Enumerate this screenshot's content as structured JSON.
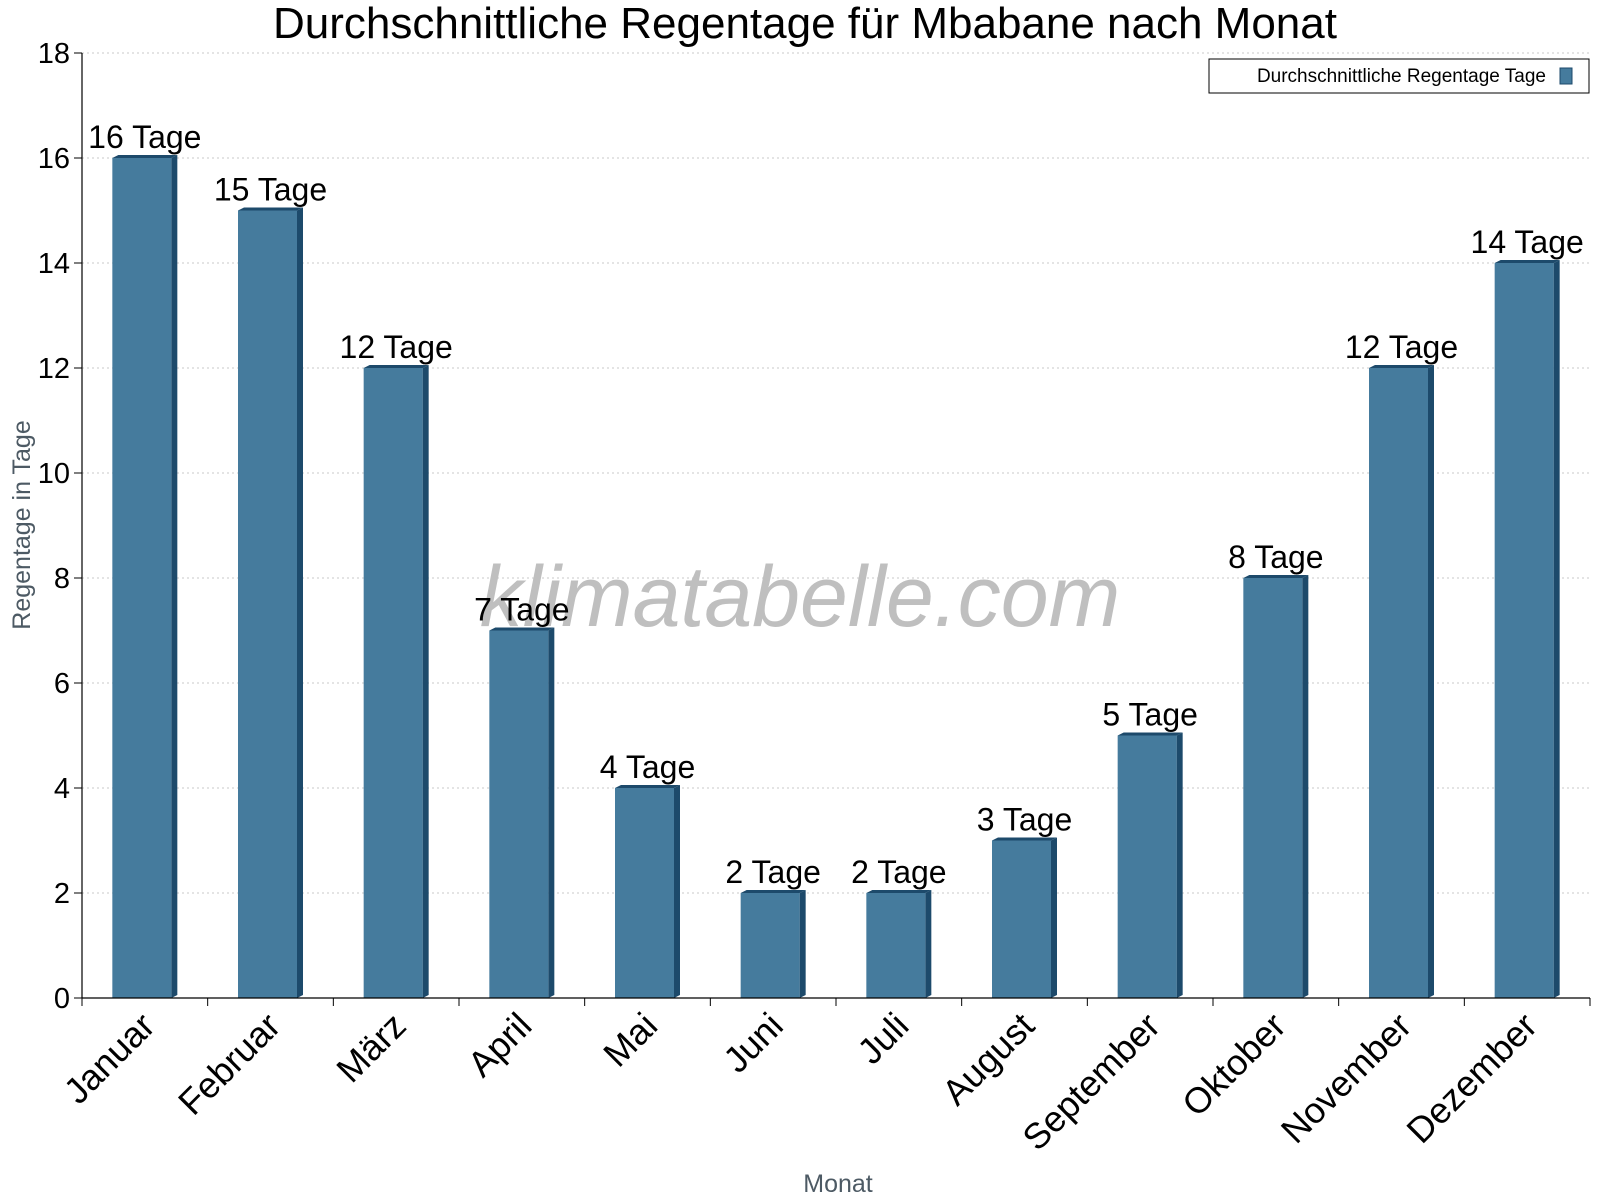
{
  "chart_data": {
    "type": "bar",
    "title": "Durchschnittliche Regentage für Mbabane nach Monat",
    "xlabel": "Monat",
    "ylabel": "Regentage in Tage",
    "ylim": [
      0,
      18
    ],
    "yticks": [
      0,
      2,
      4,
      6,
      8,
      10,
      12,
      14,
      16,
      18
    ],
    "grid": true,
    "legend_position": "top-right",
    "categories": [
      "Januar",
      "Februar",
      "März",
      "April",
      "Mai",
      "Juni",
      "Juli",
      "August",
      "September",
      "Oktober",
      "November",
      "Dezember"
    ],
    "series": [
      {
        "name": "Durchschnittliche Regentage Tage",
        "values": [
          16,
          15,
          12,
          7,
          4,
          2,
          2,
          3,
          5,
          8,
          12,
          14
        ],
        "data_labels": [
          "16 Tage",
          "15 Tage",
          "12 Tage",
          "7 Tage",
          "4 Tage",
          "2 Tage",
          "2 Tage",
          "3 Tage",
          "5 Tage",
          "8 Tage",
          "12 Tage",
          "14 Tage"
        ],
        "color": "#457b9d",
        "shade_color": "#1d4a6b"
      }
    ]
  },
  "watermark": "klimatabelle.com"
}
